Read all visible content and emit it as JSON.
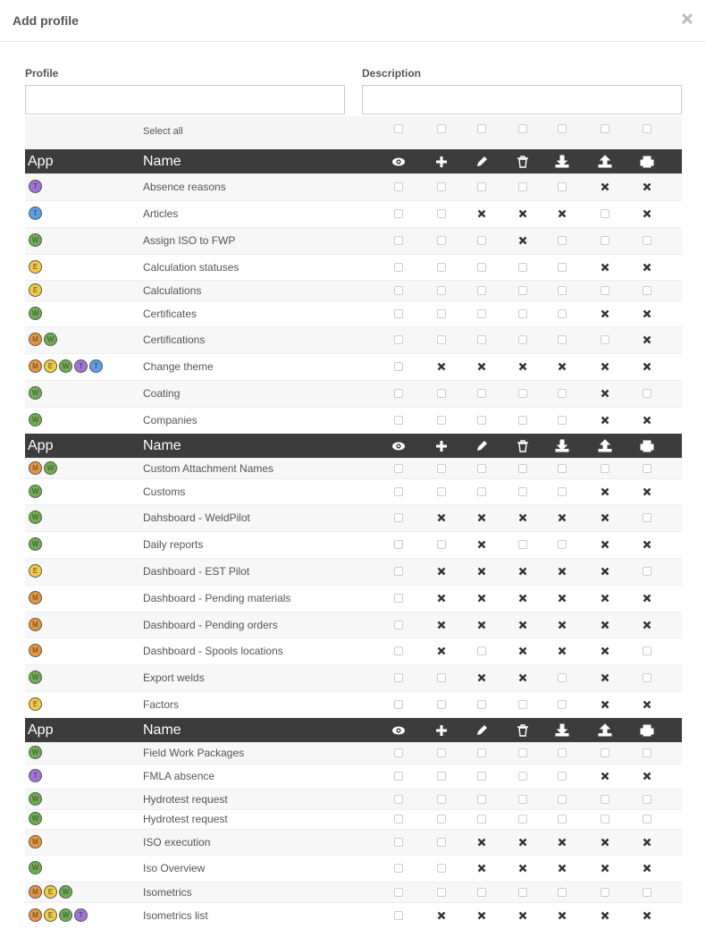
{
  "header": {
    "title": "Add profile"
  },
  "form": {
    "profile_label": "Profile",
    "description_label": "Description",
    "select_all": "Select all"
  },
  "table": {
    "columns": [
      "App",
      "Name"
    ],
    "groups": [
      {
        "rows": [
          {
            "apps": [
              {
                "letter": "T",
                "color": "#a173d6"
              }
            ],
            "name": "Absence reasons",
            "checked": [
              false,
              false,
              false,
              false,
              false,
              true,
              true
            ]
          },
          {
            "apps": [
              {
                "letter": "T",
                "color": "#5c9ee6"
              }
            ],
            "name": "Articles",
            "checked": [
              false,
              false,
              true,
              true,
              true,
              false,
              true
            ]
          },
          {
            "apps": [
              {
                "letter": "W",
                "color": "#6cb04e"
              }
            ],
            "name": "Assign ISO to FWP",
            "checked": [
              false,
              false,
              false,
              true,
              false,
              false,
              false
            ]
          },
          {
            "apps": [
              {
                "letter": "E",
                "color": "#f2cd42"
              }
            ],
            "name": "Calculation statuses",
            "checked": [
              false,
              false,
              false,
              false,
              false,
              true,
              true
            ]
          },
          {
            "apps": [
              {
                "letter": "E",
                "color": "#f2cd42"
              }
            ],
            "name": "Calculations",
            "checked": [
              false,
              false,
              false,
              false,
              false,
              false,
              false
            ]
          },
          {
            "apps": [
              {
                "letter": "W",
                "color": "#6cb04e"
              }
            ],
            "name": "Certificates",
            "checked": [
              false,
              false,
              false,
              false,
              false,
              true,
              true
            ]
          },
          {
            "apps": [
              {
                "letter": "M",
                "color": "#e8953c"
              },
              {
                "letter": "W",
                "color": "#6cb04e"
              }
            ],
            "name": "Certifications",
            "checked": [
              false,
              false,
              false,
              false,
              false,
              false,
              true
            ]
          },
          {
            "apps": [
              {
                "letter": "M",
                "color": "#e8953c"
              },
              {
                "letter": "E",
                "color": "#f2cd42"
              },
              {
                "letter": "W",
                "color": "#6cb04e"
              },
              {
                "letter": "T",
                "color": "#a173d6"
              },
              {
                "letter": "T",
                "color": "#5c9ee6"
              }
            ],
            "name": "Change theme",
            "checked": [
              false,
              true,
              true,
              true,
              true,
              true,
              true
            ]
          },
          {
            "apps": [
              {
                "letter": "W",
                "color": "#6cb04e"
              }
            ],
            "name": "Coating",
            "checked": [
              false,
              false,
              false,
              false,
              false,
              true,
              false
            ]
          },
          {
            "apps": [
              {
                "letter": "W",
                "color": "#6cb04e"
              }
            ],
            "name": "Companies",
            "checked": [
              false,
              false,
              false,
              false,
              false,
              true,
              true
            ]
          }
        ]
      },
      {
        "rows": [
          {
            "apps": [
              {
                "letter": "M",
                "color": "#e8953c"
              },
              {
                "letter": "W",
                "color": "#6cb04e"
              }
            ],
            "name": "Custom Attachment Names",
            "checked": [
              false,
              false,
              false,
              false,
              false,
              false,
              false
            ]
          },
          {
            "apps": [
              {
                "letter": "W",
                "color": "#6cb04e"
              }
            ],
            "name": "Customs",
            "checked": [
              false,
              false,
              false,
              false,
              false,
              true,
              true
            ]
          },
          {
            "apps": [
              {
                "letter": "W",
                "color": "#6cb04e"
              }
            ],
            "name": "Dahsboard - WeldPilot",
            "checked": [
              false,
              true,
              true,
              true,
              true,
              true,
              false
            ]
          },
          {
            "apps": [
              {
                "letter": "W",
                "color": "#6cb04e"
              }
            ],
            "name": "Daily reports",
            "checked": [
              false,
              false,
              true,
              false,
              false,
              true,
              true
            ]
          },
          {
            "apps": [
              {
                "letter": "E",
                "color": "#f2cd42"
              }
            ],
            "name": "Dashboard - EST Pilot",
            "checked": [
              false,
              true,
              true,
              true,
              true,
              true,
              false
            ]
          },
          {
            "apps": [
              {
                "letter": "M",
                "color": "#e8953c"
              }
            ],
            "name": "Dashboard - Pending materials",
            "checked": [
              false,
              true,
              true,
              true,
              true,
              true,
              true
            ]
          },
          {
            "apps": [
              {
                "letter": "M",
                "color": "#e8953c"
              }
            ],
            "name": "Dashboard - Pending orders",
            "checked": [
              false,
              true,
              true,
              true,
              true,
              true,
              true
            ]
          },
          {
            "apps": [
              {
                "letter": "M",
                "color": "#e8953c"
              }
            ],
            "name": "Dashboard - Spools locations",
            "checked": [
              false,
              true,
              false,
              true,
              true,
              true,
              false
            ]
          },
          {
            "apps": [
              {
                "letter": "W",
                "color": "#6cb04e"
              }
            ],
            "name": "Export welds",
            "checked": [
              false,
              false,
              true,
              true,
              false,
              true,
              false
            ]
          },
          {
            "apps": [
              {
                "letter": "E",
                "color": "#f2cd42"
              }
            ],
            "name": "Factors",
            "checked": [
              false,
              false,
              false,
              false,
              false,
              true,
              true
            ]
          }
        ]
      },
      {
        "rows": [
          {
            "apps": [
              {
                "letter": "W",
                "color": "#6cb04e"
              }
            ],
            "name": "Field Work Packages",
            "checked": [
              false,
              false,
              false,
              false,
              false,
              false,
              false
            ]
          },
          {
            "apps": [
              {
                "letter": "T",
                "color": "#a173d6"
              }
            ],
            "name": "FMLA absence",
            "checked": [
              false,
              false,
              false,
              false,
              false,
              true,
              true
            ]
          },
          {
            "apps": [
              {
                "letter": "W",
                "color": "#6cb04e"
              }
            ],
            "name": "Hydrotest request",
            "checked": [
              false,
              false,
              false,
              false,
              false,
              false,
              false
            ]
          },
          {
            "apps": [
              {
                "letter": "W",
                "color": "#6cb04e"
              }
            ],
            "name": "Hydrotest request",
            "checked": [
              false,
              false,
              false,
              false,
              false,
              false,
              false
            ]
          },
          {
            "apps": [
              {
                "letter": "M",
                "color": "#e8953c"
              }
            ],
            "name": "ISO execution",
            "checked": [
              false,
              false,
              true,
              true,
              true,
              true,
              true
            ]
          },
          {
            "apps": [
              {
                "letter": "W",
                "color": "#6cb04e"
              }
            ],
            "name": "Iso Overview",
            "checked": [
              false,
              false,
              true,
              true,
              true,
              true,
              true
            ]
          },
          {
            "apps": [
              {
                "letter": "M",
                "color": "#e8953c"
              },
              {
                "letter": "E",
                "color": "#f2cd42"
              },
              {
                "letter": "W",
                "color": "#6cb04e"
              }
            ],
            "name": "Isometrics",
            "checked": [
              false,
              false,
              false,
              false,
              false,
              false,
              false
            ]
          },
          {
            "apps": [
              {
                "letter": "M",
                "color": "#e8953c"
              },
              {
                "letter": "E",
                "color": "#f2cd42"
              },
              {
                "letter": "W",
                "color": "#6cb04e"
              },
              {
                "letter": "T",
                "color": "#a173d6"
              }
            ],
            "name": "Isometrics list",
            "checked": [
              false,
              true,
              true,
              true,
              true,
              true,
              true
            ]
          }
        ]
      }
    ]
  }
}
